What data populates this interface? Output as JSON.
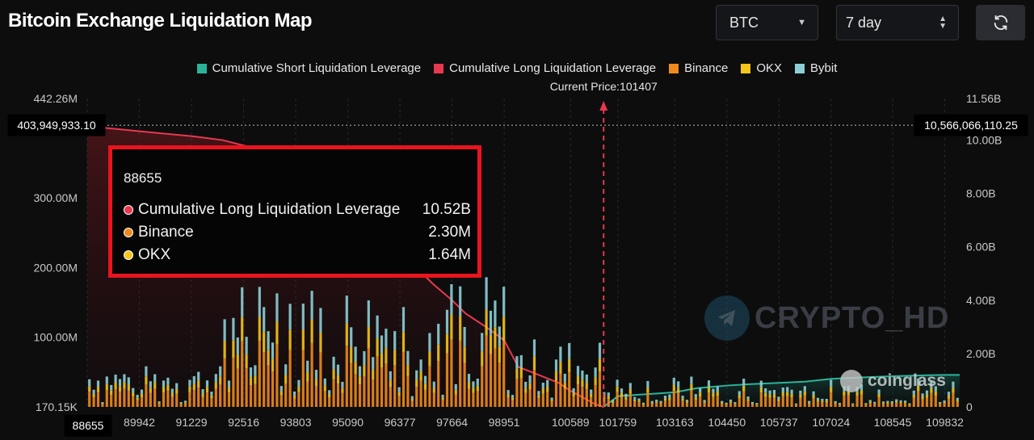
{
  "header": {
    "title": "Bitcoin Exchange Liquidation Map",
    "symbol_select": "BTC",
    "range_select": "7 day",
    "refresh_icon": "refresh-icon"
  },
  "colors": {
    "short": "#2bb39a",
    "long": "#e8384f",
    "binance": "#f08a1c",
    "okx": "#f5c518",
    "bybit": "#8ccfd6",
    "tooltip_border": "#e8141e"
  },
  "tooltip": {
    "title": "88655",
    "rows": [
      {
        "label": "Cumulative Long Liquidation Leverage",
        "value": "10.52B",
        "color": "#e8384f"
      },
      {
        "label": "Binance",
        "value": "2.30M",
        "color": "#f08a1c"
      },
      {
        "label": "OKX",
        "value": "1.64M",
        "color": "#f5c518"
      }
    ]
  },
  "watermark": {
    "text": "CRYPTO_HD",
    "brand": "coinglass"
  },
  "chart_data": {
    "type": "bar",
    "legend": [
      {
        "name": "Cumulative Short Liquidation Leverage",
        "color": "#2bb39a"
      },
      {
        "name": "Cumulative Long Liquidation Leverage",
        "color": "#e8384f"
      },
      {
        "name": "Binance",
        "color": "#f08a1c"
      },
      {
        "name": "OKX",
        "color": "#f5c518"
      },
      {
        "name": "Bybit",
        "color": "#8ccfd6"
      }
    ],
    "legend_position": "top-center",
    "current_price_label": "Current Price:101407",
    "current_price": 101407,
    "x_range": [
      88655,
      110200
    ],
    "x_ticks": [
      "88655",
      "89942",
      "91229",
      "92516",
      "93803",
      "95090",
      "96377",
      "97664",
      "98951",
      "100589",
      "101759",
      "103163",
      "104450",
      "105737",
      "107024",
      "108545",
      "109832"
    ],
    "left_ticks": [
      "442.26M",
      "300.00M",
      "200.00M",
      "100.00M",
      "170.15K"
    ],
    "left_tick_values": [
      442.26,
      300,
      200,
      100,
      0.17
    ],
    "left_unit": "M",
    "right_ticks": [
      "11.56B",
      "10.00B",
      "8.00B",
      "6.00B",
      "4.00B",
      "2.00B",
      "0"
    ],
    "right_tick_values": [
      11.56,
      10,
      8,
      6,
      4,
      2,
      0
    ],
    "right_unit": "B",
    "crosshair_left_label": "403,949,933.10",
    "crosshair_right_label": "10,566,066,110.25",
    "crosshair_left_value": 403.95,
    "long_curve": {
      "x": [
        88655,
        89500,
        90500,
        91229,
        92000,
        92516,
        93000,
        93500,
        94000,
        94500,
        95090,
        95600,
        96000,
        96377,
        96800,
        97200,
        97664,
        98000,
        98500,
        98951,
        99300,
        99800,
        100300,
        100589,
        100900,
        101200,
        101407
      ],
      "values": [
        10.52,
        10.4,
        10.25,
        10.15,
        10.0,
        9.8,
        9.6,
        9.3,
        9.0,
        8.6,
        8.0,
        7.4,
        6.8,
        6.0,
        5.2,
        4.6,
        4.0,
        3.5,
        3.0,
        2.5,
        1.5,
        1.2,
        0.9,
        0.6,
        0.35,
        0.1,
        0.0
      ]
    },
    "short_curve": {
      "x": [
        101407,
        101759,
        102200,
        102700,
        103163,
        103700,
        104450,
        105000,
        105737,
        106400,
        107024,
        107700,
        108545,
        109200,
        109832,
        110200
      ],
      "values": [
        0.0,
        0.4,
        0.45,
        0.5,
        0.55,
        0.7,
        0.8,
        0.85,
        0.9,
        0.95,
        1.05,
        1.1,
        1.15,
        1.18,
        1.2,
        1.2
      ]
    }
  }
}
